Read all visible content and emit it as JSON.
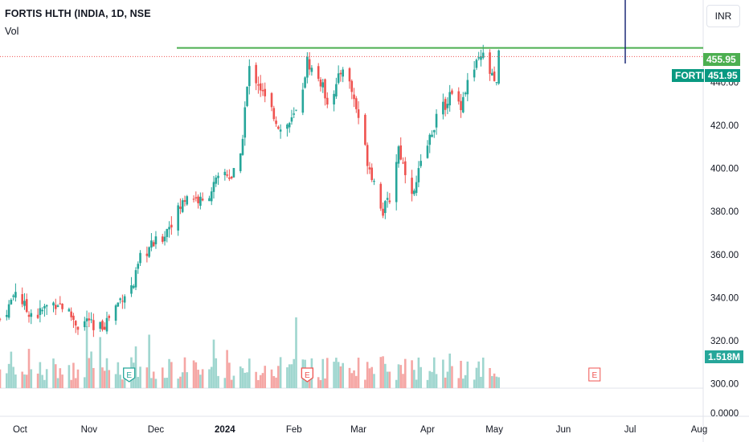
{
  "header": {
    "title": "FORTIS HLTH (INDIA, 1D, NSE",
    "volume_label": "Vol",
    "currency_button": "INR"
  },
  "tags": {
    "resistance_value": "455.95",
    "symbol": "FORTIS",
    "last_price": "451.95",
    "volume_value": "1.518M"
  },
  "colors": {
    "up": "#26a69a",
    "down": "#ef5350",
    "vol_up": "#9fd6cf",
    "vol_down": "#f5a6a4",
    "resistance": "#4caf50",
    "price_line": "#ef5350",
    "axis_text": "#131722"
  },
  "chart_data": {
    "type": "candlestick",
    "title": "FORTIS HLTH (INDIA, 1D, NSE",
    "y_ticks": [
      "300.00",
      "320.00",
      "340.00",
      "360.00",
      "380.00",
      "400.00",
      "420.00",
      "440.00"
    ],
    "volume_axis_tick": "0.0000",
    "x_ticks": [
      "Oct",
      "Nov",
      "Dec",
      "2024",
      "Feb",
      "Mar",
      "Apr",
      "May",
      "Jun",
      "Jul",
      "Aug"
    ],
    "ylim": [
      298,
      470
    ],
    "resistance_level": 455.95,
    "last_price": 451.95,
    "last_volume": "1.518M",
    "earnings_markers": [
      "Nov",
      "Feb",
      "Jun"
    ],
    "close_path": [
      [
        "2023-09-22",
        330
      ],
      [
        "2023-09-26",
        336
      ],
      [
        "2023-09-29",
        344
      ],
      [
        "2023-10-04",
        334
      ],
      [
        "2023-10-09",
        332
      ],
      [
        "2023-10-13",
        336
      ],
      [
        "2023-10-18",
        338
      ],
      [
        "2023-10-23",
        333
      ],
      [
        "2023-10-27",
        327
      ],
      [
        "2023-11-01",
        330
      ],
      [
        "2023-11-03",
        324
      ],
      [
        "2023-11-08",
        328
      ],
      [
        "2023-11-13",
        336
      ],
      [
        "2023-11-16",
        341
      ],
      [
        "2023-11-21",
        346
      ],
      [
        "2023-11-24",
        358
      ],
      [
        "2023-11-29",
        364
      ],
      [
        "2023-12-04",
        368
      ],
      [
        "2023-12-07",
        374
      ],
      [
        "2023-12-12",
        382
      ],
      [
        "2023-12-15",
        388
      ],
      [
        "2023-12-19",
        386
      ],
      [
        "2023-12-22",
        384
      ],
      [
        "2023-12-27",
        392
      ],
      [
        "2024-01-01",
        398
      ],
      [
        "2024-01-04",
        396
      ],
      [
        "2024-01-08",
        404
      ],
      [
        "2024-01-10",
        428
      ],
      [
        "2024-01-12",
        446
      ],
      [
        "2024-01-16",
        440
      ],
      [
        "2024-01-19",
        432
      ],
      [
        "2024-01-23",
        425
      ],
      [
        "2024-01-26",
        418
      ],
      [
        "2024-01-31",
        422
      ],
      [
        "2024-02-02",
        426
      ],
      [
        "2024-02-05",
        438
      ],
      [
        "2024-02-07",
        450
      ],
      [
        "2024-02-09",
        446
      ],
      [
        "2024-02-13",
        440
      ],
      [
        "2024-02-16",
        432
      ],
      [
        "2024-02-20",
        438
      ],
      [
        "2024-02-23",
        448
      ],
      [
        "2024-02-27",
        436
      ],
      [
        "2024-03-01",
        424
      ],
      [
        "2024-03-05",
        404
      ],
      [
        "2024-03-08",
        394
      ],
      [
        "2024-03-12",
        380
      ],
      [
        "2024-03-15",
        386
      ],
      [
        "2024-03-19",
        410
      ],
      [
        "2024-03-21",
        402
      ],
      [
        "2024-03-26",
        388
      ],
      [
        "2024-03-28",
        398
      ],
      [
        "2024-04-02",
        414
      ],
      [
        "2024-04-05",
        424
      ],
      [
        "2024-04-08",
        428
      ],
      [
        "2024-04-11",
        434
      ],
      [
        "2024-04-16",
        430
      ],
      [
        "2024-04-19",
        440
      ],
      [
        "2024-04-23",
        448
      ],
      [
        "2024-04-26",
        452
      ],
      [
        "2024-04-30",
        442
      ],
      [
        "2024-05-02",
        438
      ],
      [
        "2024-05-03",
        451.95
      ]
    ]
  }
}
